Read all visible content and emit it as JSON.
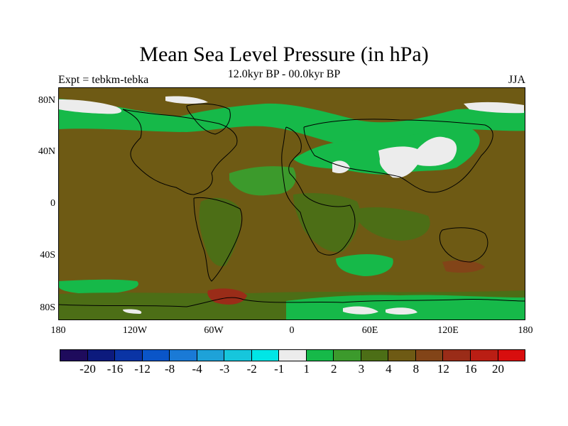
{
  "title": "Mean Sea Level Pressure (in hPa)",
  "subtitle": "12.0kyr BP - 00.0kyr BP",
  "left_label": "Expt = tebkm-tebka",
  "right_label": "JJA",
  "lat_ticks": [
    "80N",
    "40N",
    "0",
    "40S",
    "80S"
  ],
  "lon_ticks": [
    "180",
    "120W",
    "60W",
    "0",
    "60E",
    "120E",
    "180"
  ],
  "colorbar": {
    "labels": [
      "-20",
      "-16",
      "-12",
      "-8",
      "-4",
      "-3",
      "-2",
      "-1",
      "1",
      "2",
      "3",
      "4",
      "8",
      "12",
      "16",
      "20"
    ],
    "colors": [
      "#1e0b5c",
      "#0c1a7d",
      "#0a34a5",
      "#0a55c8",
      "#1a7ad6",
      "#1ea2d8",
      "#16c6dc",
      "#00e6e6",
      "#ececec",
      "#16b949",
      "#3c9a2c",
      "#4c6e16",
      "#6e5a14",
      "#824418",
      "#9a2c18",
      "#ba1e14",
      "#d80e0e"
    ]
  },
  "map": {
    "base_color": "#6e5a14",
    "contour_colors": {
      "white": "#ececec",
      "green": "#16b949",
      "mid_green": "#3c9a2c",
      "olive": "#4c6e16",
      "brown": "#824418",
      "red": "#9a2c18"
    }
  }
}
